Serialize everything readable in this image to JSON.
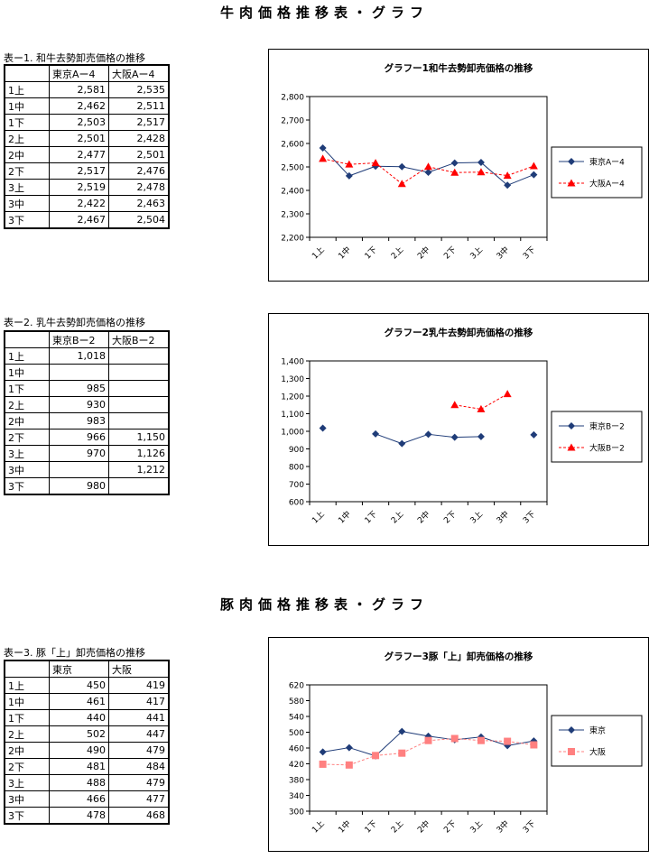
{
  "page": {
    "beef_title": "牛肉価格推移表・グラフ",
    "pork_title": "豚肉価格推移表・グラフ"
  },
  "tables": [
    {
      "title": "表ー1. 和牛去勢卸売価格の推移",
      "headers": [
        "東京Aー4",
        "大阪Aー4"
      ],
      "rows": [
        [
          "1上",
          "2,581",
          "2,535"
        ],
        [
          "1中",
          "2,462",
          "2,511"
        ],
        [
          "1下",
          "2,503",
          "2,517"
        ],
        [
          "2上",
          "2,501",
          "2,428"
        ],
        [
          "2中",
          "2,477",
          "2,501"
        ],
        [
          "2下",
          "2,517",
          "2,476"
        ],
        [
          "3上",
          "2,519",
          "2,478"
        ],
        [
          "3中",
          "2,422",
          "2,463"
        ],
        [
          "3下",
          "2,467",
          "2,504"
        ]
      ]
    },
    {
      "title": "表ー2. 乳牛去勢卸売価格の推移",
      "headers": [
        "東京Bー2",
        "大阪Bー2"
      ],
      "rows": [
        [
          "1上",
          "1,018",
          ""
        ],
        [
          "1中",
          "",
          ""
        ],
        [
          "1下",
          "985",
          ""
        ],
        [
          "2上",
          "930",
          ""
        ],
        [
          "2中",
          "983",
          ""
        ],
        [
          "2下",
          "966",
          "1,150"
        ],
        [
          "3上",
          "970",
          "1,126"
        ],
        [
          "3中",
          "",
          "1,212"
        ],
        [
          "3下",
          "980",
          ""
        ]
      ]
    },
    {
      "title": "表ー3. 豚「上」卸売価格の推移",
      "headers": [
        "東京",
        "大阪"
      ],
      "rows": [
        [
          "1上",
          "450",
          "419"
        ],
        [
          "1中",
          "461",
          "417"
        ],
        [
          "1下",
          "440",
          "441"
        ],
        [
          "2上",
          "502",
          "447"
        ],
        [
          "2中",
          "490",
          "479"
        ],
        [
          "2下",
          "481",
          "484"
        ],
        [
          "3上",
          "488",
          "479"
        ],
        [
          "3中",
          "466",
          "477"
        ],
        [
          "3下",
          "478",
          "468"
        ]
      ]
    }
  ],
  "chart_data": [
    {
      "type": "line",
      "title": "グラフー1和牛去勢卸売価格の推移",
      "categories": [
        "1上",
        "1中",
        "1下",
        "2上",
        "2中",
        "2下",
        "3上",
        "3中",
        "3下"
      ],
      "ylim": [
        2200,
        2800
      ],
      "yticks": [
        2200,
        2300,
        2400,
        2500,
        2600,
        2700,
        2800
      ],
      "ytick_labels": [
        "2,200",
        "2,300",
        "2,400",
        "2,500",
        "2,600",
        "2,700",
        "2,800"
      ],
      "legend_position": "right",
      "series": [
        {
          "name": "東京Aー4",
          "color": "#1f3c78",
          "marker": "diamond",
          "dashed": false,
          "values": [
            2581,
            2462,
            2503,
            2501,
            2477,
            2517,
            2519,
            2422,
            2467
          ]
        },
        {
          "name": "大阪Aー4",
          "color": "#ff0000",
          "marker": "triangle",
          "dashed": true,
          "values": [
            2535,
            2511,
            2517,
            2428,
            2501,
            2476,
            2478,
            2463,
            2504
          ]
        }
      ]
    },
    {
      "type": "line",
      "title": "グラフー2乳牛去勢卸売価格の推移",
      "categories": [
        "1上",
        "1中",
        "1下",
        "2上",
        "2中",
        "2下",
        "3上",
        "3中",
        "3下"
      ],
      "ylim": [
        600,
        1400
      ],
      "yticks": [
        600,
        700,
        800,
        900,
        1000,
        1100,
        1200,
        1300,
        1400
      ],
      "ytick_labels": [
        "600",
        "700",
        "800",
        "900",
        "1,000",
        "1,100",
        "1,200",
        "1,300",
        "1,400"
      ],
      "legend_position": "right",
      "series": [
        {
          "name": "東京Bー2",
          "color": "#1f3c78",
          "marker": "diamond",
          "dashed": false,
          "values": [
            1018,
            null,
            985,
            930,
            983,
            966,
            970,
            null,
            980
          ]
        },
        {
          "name": "大阪Bー2",
          "color": "#ff0000",
          "marker": "triangle",
          "dashed": true,
          "values": [
            null,
            null,
            null,
            null,
            null,
            1150,
            1126,
            1212,
            null
          ]
        }
      ]
    },
    {
      "type": "line",
      "title": "グラフー3豚「上」卸売価格の推移",
      "categories": [
        "1上",
        "1中",
        "1下",
        "2上",
        "2中",
        "2下",
        "3上",
        "3中",
        "3下"
      ],
      "ylim": [
        300,
        620
      ],
      "yticks": [
        300,
        340,
        380,
        420,
        460,
        500,
        540,
        580,
        620
      ],
      "ytick_labels": [
        "300",
        "340",
        "380",
        "420",
        "460",
        "500",
        "540",
        "580",
        "620"
      ],
      "legend_position": "right",
      "series": [
        {
          "name": "東京",
          "color": "#1f3c78",
          "marker": "diamond",
          "dashed": false,
          "values": [
            450,
            461,
            440,
            502,
            490,
            481,
            488,
            466,
            478
          ]
        },
        {
          "name": "大阪",
          "color": "#ff8080",
          "marker": "square",
          "dashed": true,
          "values": [
            419,
            417,
            441,
            447,
            479,
            484,
            479,
            477,
            468
          ]
        }
      ]
    }
  ]
}
